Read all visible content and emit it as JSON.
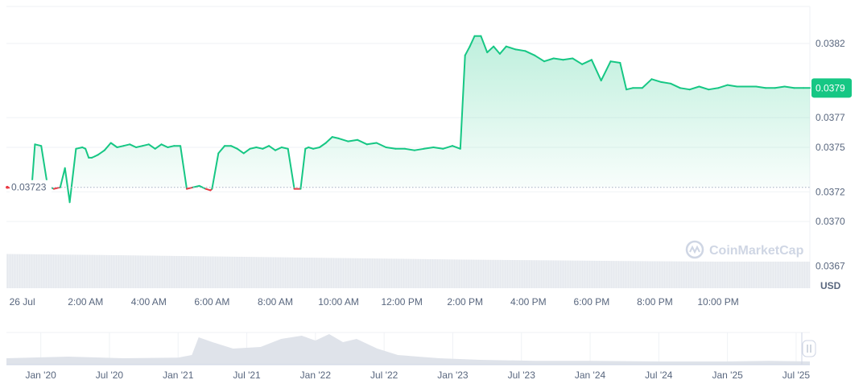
{
  "chart_data": {
    "type": "area",
    "currency_label": "USD",
    "watermark": "CoinMarketCap",
    "reference_value": 0.03723,
    "reference_label": "0.03723",
    "current_value": 0.0379,
    "current_label": "0.0379",
    "colors": {
      "up": "#16c784",
      "down": "#ea3943",
      "up_fill": "#16c784",
      "volume": "#e6e9ee",
      "grid": "#eff2f5",
      "text": "#58667e",
      "overview": "#dfe3ea"
    },
    "ylim": [
      0.03655,
      0.03845
    ],
    "yticks": [
      {
        "value": 0.0382,
        "label": "0.0382"
      },
      {
        "value": 0.0377,
        "label": "0.0377"
      },
      {
        "value": 0.0375,
        "label": "0.0375"
      },
      {
        "value": 0.0372,
        "label": "0.0372"
      },
      {
        "value": 0.037,
        "label": "0.0370"
      },
      {
        "value": 0.0367,
        "label": "0.0367"
      }
    ],
    "xlim": [
      -0.5,
      24.9
    ],
    "xticks": [
      {
        "value": 0,
        "label": "26 Jul"
      },
      {
        "value": 2,
        "label": "2:00 AM"
      },
      {
        "value": 4,
        "label": "4:00 AM"
      },
      {
        "value": 6,
        "label": "6:00 AM"
      },
      {
        "value": 8,
        "label": "8:00 AM"
      },
      {
        "value": 10,
        "label": "10:00 AM"
      },
      {
        "value": 12,
        "label": "12:00 PM"
      },
      {
        "value": 14,
        "label": "2:00 PM"
      },
      {
        "value": 16,
        "label": "4:00 PM"
      },
      {
        "value": 18,
        "label": "6:00 PM"
      },
      {
        "value": 20,
        "label": "8:00 PM"
      },
      {
        "value": 22,
        "label": "10:00 PM"
      }
    ],
    "series": [
      {
        "x": [
          -0.5,
          -0.2,
          0.1,
          0.3,
          0.4,
          0.6,
          0.8,
          1.0,
          1.2,
          1.35,
          1.5,
          1.7,
          1.9,
          2.0,
          2.1,
          2.2,
          2.3,
          2.4,
          2.6,
          2.8,
          3.0,
          3.2,
          3.4,
          3.6,
          3.8,
          4.0,
          4.2,
          4.4,
          4.6,
          4.8,
          5.0,
          5.2,
          5.4,
          5.6,
          5.8,
          5.95,
          6.0,
          6.2,
          6.4,
          6.6,
          6.8,
          7.0,
          7.2,
          7.4,
          7.6,
          7.8,
          8.0,
          8.2,
          8.4,
          8.6,
          8.8,
          8.95,
          9.05,
          9.2,
          9.4,
          9.6,
          9.8,
          10.0,
          10.3,
          10.6,
          10.9,
          11.2,
          11.5,
          11.8,
          12.1,
          12.4,
          12.7,
          13.0,
          13.3,
          13.6,
          13.85,
          14.0,
          14.15,
          14.3,
          14.5,
          14.7,
          14.9,
          15.1,
          15.3,
          15.6,
          15.9,
          16.2,
          16.5,
          16.8,
          17.1,
          17.4,
          17.7,
          18.0,
          18.3,
          18.6,
          18.9,
          19.1,
          19.3,
          19.6,
          19.9,
          20.2,
          20.5,
          20.8,
          21.1,
          21.4,
          21.7,
          22.0,
          22.3,
          22.6,
          22.9,
          23.2,
          23.5,
          23.8,
          24.1,
          24.4,
          24.7,
          24.9
        ],
        "y": [
          0.03723,
          0.03722,
          0.03719,
          0.03723,
          0.03752,
          0.03751,
          0.03724,
          0.03722,
          0.03723,
          0.03736,
          0.03713,
          0.03749,
          0.0375,
          0.03749,
          0.03743,
          0.03743,
          0.03744,
          0.03745,
          0.03748,
          0.03753,
          0.0375,
          0.03751,
          0.03752,
          0.0375,
          0.03751,
          0.03752,
          0.03749,
          0.03752,
          0.0375,
          0.03751,
          0.03751,
          0.03722,
          0.03723,
          0.03724,
          0.03722,
          0.03721,
          0.03722,
          0.03746,
          0.03751,
          0.03751,
          0.03749,
          0.03746,
          0.03749,
          0.0375,
          0.03749,
          0.03751,
          0.03748,
          0.0375,
          0.03749,
          0.03722,
          0.03722,
          0.03749,
          0.0375,
          0.03749,
          0.0375,
          0.03753,
          0.03757,
          0.03756,
          0.03754,
          0.03755,
          0.03752,
          0.03753,
          0.0375,
          0.03749,
          0.03749,
          0.03748,
          0.03749,
          0.0375,
          0.03749,
          0.03751,
          0.03749,
          0.03812,
          0.03818,
          0.03825,
          0.03825,
          0.03814,
          0.03818,
          0.03813,
          0.03818,
          0.03816,
          0.03815,
          0.03812,
          0.03808,
          0.0381,
          0.03809,
          0.0381,
          0.03806,
          0.03809,
          0.03795,
          0.03808,
          0.03807,
          0.03789,
          0.0379,
          0.0379,
          0.03796,
          0.03794,
          0.03793,
          0.0379,
          0.03789,
          0.03791,
          0.03789,
          0.0379,
          0.03792,
          0.03791,
          0.03791,
          0.03791,
          0.0379,
          0.0379,
          0.03791,
          0.0379,
          0.0379,
          0.0379
        ]
      }
    ],
    "volume": {
      "x": [
        -0.5,
        2,
        5,
        8,
        11,
        14,
        17,
        20,
        22,
        24.9
      ],
      "values": [
        0.85,
        0.83,
        0.8,
        0.77,
        0.74,
        0.71,
        0.69,
        0.67,
        0.66,
        0.66
      ]
    },
    "overview": {
      "xlim": [
        2019.75,
        2025.6
      ],
      "xticks": [
        {
          "value": 2020.0,
          "label": "Jan '20"
        },
        {
          "value": 2020.5,
          "label": "Jul '20"
        },
        {
          "value": 2021.0,
          "label": "Jan '21"
        },
        {
          "value": 2021.5,
          "label": "Jul '21"
        },
        {
          "value": 2022.0,
          "label": "Jan '22"
        },
        {
          "value": 2022.5,
          "label": "Jul '22"
        },
        {
          "value": 2023.0,
          "label": "Jan '23"
        },
        {
          "value": 2023.5,
          "label": "Jul '23"
        },
        {
          "value": 2024.0,
          "label": "Jan '24"
        },
        {
          "value": 2024.5,
          "label": "Jul '24"
        },
        {
          "value": 2025.0,
          "label": "Jan '25"
        },
        {
          "value": 2025.5,
          "label": "Jul '25"
        }
      ],
      "x": [
        2019.75,
        2020.2,
        2020.6,
        2021.0,
        2021.1,
        2021.15,
        2021.25,
        2021.4,
        2021.6,
        2021.75,
        2021.9,
        2022.0,
        2022.1,
        2022.2,
        2022.3,
        2022.45,
        2022.6,
        2022.9,
        2023.2,
        2023.6,
        2024.0,
        2024.5,
        2025.0,
        2025.3,
        2025.6
      ],
      "values": [
        0.2,
        0.25,
        0.2,
        0.22,
        0.3,
        0.85,
        0.7,
        0.5,
        0.55,
        0.8,
        0.9,
        0.75,
        0.95,
        0.7,
        0.8,
        0.5,
        0.3,
        0.2,
        0.15,
        0.12,
        0.12,
        0.1,
        0.1,
        0.12,
        0.1
      ]
    }
  }
}
